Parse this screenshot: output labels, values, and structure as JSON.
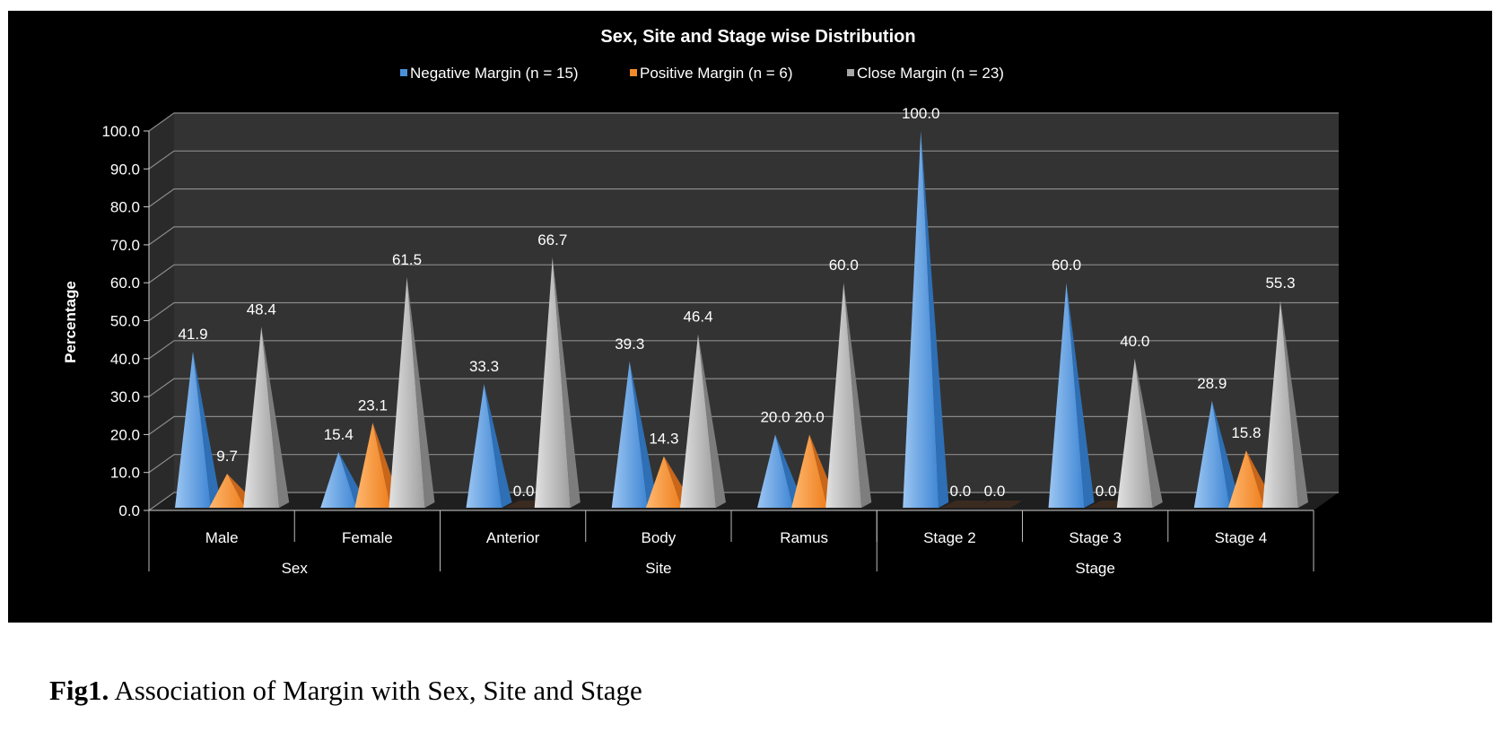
{
  "chart_data": {
    "type": "bar",
    "style": "3d-cone",
    "title": "Sex, Site and Stage wise Distribution",
    "ylabel": "Percentage",
    "xlabel": "",
    "ylim": [
      0,
      100
    ],
    "yticks": [
      0,
      10,
      20,
      30,
      40,
      50,
      60,
      70,
      80,
      90,
      100
    ],
    "tick_format": "0.0",
    "grid": true,
    "legend_position": "top",
    "categories": [
      "Male",
      "Female",
      "Anterior",
      "Body",
      "Ramus",
      "Stage 2",
      "Stage 3",
      "Stage 4"
    ],
    "groups": [
      {
        "label": "Sex",
        "span": 2
      },
      {
        "label": "Site",
        "span": 3
      },
      {
        "label": "Stage",
        "span": 3
      }
    ],
    "series": [
      {
        "name": "Negative Margin (n = 15)",
        "color": "#4a90d9",
        "values": [
          41.9,
          15.4,
          33.3,
          39.3,
          20.0,
          100.0,
          60.0,
          28.9
        ]
      },
      {
        "name": "Positive Margin (n = 6)",
        "color": "#f08a2b",
        "values": [
          9.7,
          23.1,
          0.0,
          14.3,
          20.0,
          0.0,
          0.0,
          15.8
        ]
      },
      {
        "name": "Close Margin (n = 23)",
        "color": "#a6a6a6",
        "values": [
          48.4,
          61.5,
          66.7,
          46.4,
          60.0,
          0.0,
          40.0,
          55.3
        ]
      }
    ],
    "data_labels": [
      [
        "41.9",
        "15.4",
        "33.3",
        "39.3",
        "20.0",
        "100.0",
        "60.0",
        "28.9"
      ],
      [
        "9.7",
        "23.1",
        "0.0",
        "14.3",
        "20.0",
        "0.0",
        "0.0",
        "15.8"
      ],
      [
        "48.4",
        "61.5",
        "66.7",
        "46.4",
        "60.0",
        "0.0",
        "40.0",
        "55.3"
      ]
    ],
    "colors": {
      "background": "#000000",
      "wall": "#333333",
      "gridline": "#8a8a8a",
      "text": "#ffffff"
    }
  },
  "caption": {
    "label": "Fig1.",
    "text": " Association of Margin with Sex, Site and Stage"
  }
}
